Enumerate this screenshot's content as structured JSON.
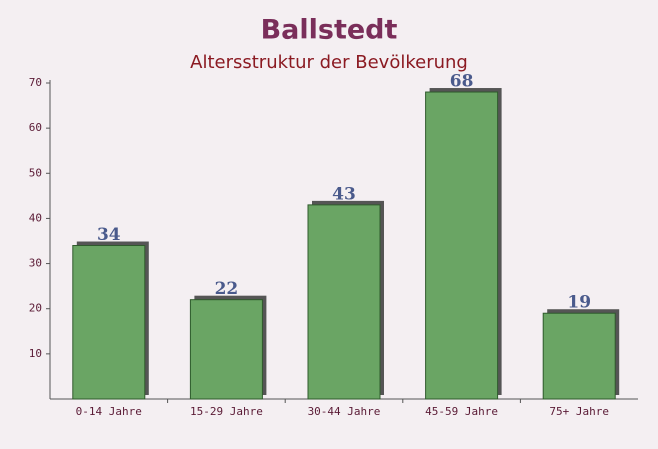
{
  "chart_data": {
    "type": "bar",
    "title": "Ballstedt",
    "subtitle": "Altersstruktur der Bevölkerung",
    "categories": [
      "0-14 Jahre",
      "15-29 Jahre",
      "30-44 Jahre",
      "45-59 Jahre",
      "75+ Jahre"
    ],
    "values": [
      34,
      22,
      43,
      68,
      19
    ],
    "color": "#6aa564",
    "ylim": [
      0,
      70
    ],
    "yticks": [
      10,
      20,
      30,
      40,
      50,
      60,
      70
    ]
  }
}
